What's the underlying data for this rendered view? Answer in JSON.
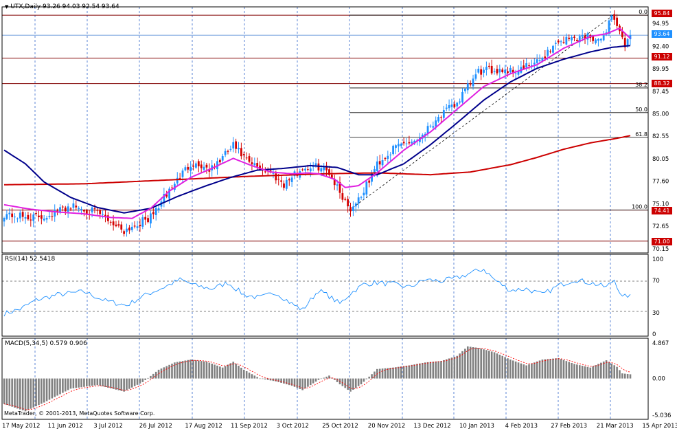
{
  "main_panel": {
    "legend_prefix": "UTX,Daily",
    "ohlc": "93.26 94.03 92.54 93.64",
    "y_ticks": [
      "94.95",
      "92.40",
      "89.95",
      "87.45",
      "85.00",
      "82.55",
      "80.05",
      "77.60",
      "75.10",
      "72.65",
      "70.15"
    ],
    "horizontal_lines": [
      {
        "value": 95.84,
        "label": "95.84"
      },
      {
        "value": 91.12,
        "label": "91.12"
      },
      {
        "value": 88.32,
        "label": "88.32"
      },
      {
        "value": 74.41,
        "label": "74.41"
      },
      {
        "value": 71.0,
        "label": "71.00"
      }
    ],
    "current_price": {
      "value": 93.64,
      "label": "93.64"
    },
    "fibonacci": [
      {
        "value": 95.84,
        "label": "0.0"
      },
      {
        "value": 87.84,
        "label": "38.2"
      },
      {
        "value": 85.13,
        "label": "50.0"
      },
      {
        "value": 82.41,
        "label": "61.8"
      },
      {
        "value": 74.41,
        "label": "100.0"
      }
    ]
  },
  "rsi_panel": {
    "label": "RSI(14) 52.5418",
    "y_ticks": [
      "100",
      "70",
      "30",
      "0"
    ]
  },
  "macd_panel": {
    "label": "MACD(5,34,5) 0.579 0.906",
    "y_ticks": [
      "4.867",
      "0.00",
      "-5.036"
    ]
  },
  "copyright": "MetaTrader, © 2001-2013, MetaQuotes Software Corp.",
  "x_labels": [
    "17 May 2012",
    "11 Jun 2012",
    "3 Jul 2012",
    "26 Jul 2012",
    "17 Aug 2012",
    "11 Sep 2012",
    "3 Oct 2012",
    "25 Oct 2012",
    "20 Nov 2012",
    "13 Dec 2012",
    "10 Jan 2013",
    "4 Feb 2013",
    "27 Feb 2013",
    "21 Mar 2013",
    "15 Apr 2013"
  ],
  "colors": {
    "bull": "#1e90ff",
    "bear": "#d40000",
    "ma_fast": "#e020e0",
    "ma_mid": "#00008b",
    "ma_slow": "#cc0000",
    "rsi": "#1e90ff",
    "macd_bars": "#808080",
    "macd_signal": "#ff0000",
    "grid": "#3366cc",
    "hline": "#800000"
  },
  "chart_data": {
    "type": "candlestick",
    "symbol": "UTX",
    "timeframe": "Daily",
    "ylim": [
      70.15,
      96.8
    ],
    "close_anchors": [
      [
        0,
        74.0
      ],
      [
        8,
        73.6
      ],
      [
        15,
        73.7
      ],
      [
        25,
        74.9
      ],
      [
        35,
        74.1
      ],
      [
        45,
        72.2
      ],
      [
        55,
        73.6
      ],
      [
        62,
        76.6
      ],
      [
        70,
        79.6
      ],
      [
        78,
        78.9
      ],
      [
        86,
        81.5
      ],
      [
        92,
        79.5
      ],
      [
        100,
        78.6
      ],
      [
        105,
        77.3
      ],
      [
        112,
        79.0
      ],
      [
        118,
        79.2
      ],
      [
        122,
        78.6
      ],
      [
        126,
        76.4
      ],
      [
        130,
        74.5
      ],
      [
        135,
        76.5
      ],
      [
        140,
        79.5
      ],
      [
        148,
        81.6
      ],
      [
        155,
        82.2
      ],
      [
        162,
        84.4
      ],
      [
        170,
        86.2
      ],
      [
        178,
        89.6
      ],
      [
        186,
        89.9
      ],
      [
        192,
        89.7
      ],
      [
        200,
        90.6
      ],
      [
        208,
        93.0
      ],
      [
        215,
        93.4
      ],
      [
        220,
        93.6
      ],
      [
        224,
        92.8
      ],
      [
        228,
        95.9
      ],
      [
        231,
        94.2
      ],
      [
        233,
        92.0
      ],
      [
        235,
        93.64
      ]
    ],
    "ma_fast_anchors": [
      [
        0,
        75.0
      ],
      [
        10,
        74.5
      ],
      [
        20,
        74.2
      ],
      [
        30,
        74.0
      ],
      [
        40,
        73.6
      ],
      [
        48,
        73.5
      ],
      [
        55,
        74.6
      ],
      [
        62,
        76.5
      ],
      [
        70,
        78.0
      ],
      [
        78,
        79.0
      ],
      [
        86,
        80.1
      ],
      [
        92,
        79.4
      ],
      [
        100,
        78.6
      ],
      [
        108,
        78.4
      ],
      [
        114,
        78.5
      ],
      [
        118,
        78.4
      ],
      [
        124,
        77.8
      ],
      [
        128,
        76.9
      ],
      [
        133,
        77.1
      ],
      [
        140,
        78.5
      ],
      [
        150,
        81.0
      ],
      [
        160,
        83.0
      ],
      [
        170,
        85.5
      ],
      [
        180,
        88.0
      ],
      [
        190,
        89.4
      ],
      [
        200,
        90.4
      ],
      [
        210,
        92.2
      ],
      [
        220,
        93.5
      ],
      [
        226,
        93.8
      ],
      [
        231,
        94.4
      ],
      [
        235,
        93.3
      ]
    ],
    "ma_mid_anchors": [
      [
        0,
        81.0
      ],
      [
        8,
        79.5
      ],
      [
        15,
        77.5
      ],
      [
        25,
        75.8
      ],
      [
        35,
        74.7
      ],
      [
        45,
        74.1
      ],
      [
        55,
        74.6
      ],
      [
        65,
        75.9
      ],
      [
        75,
        77.0
      ],
      [
        85,
        78.0
      ],
      [
        95,
        78.8
      ],
      [
        105,
        79.0
      ],
      [
        115,
        79.3
      ],
      [
        125,
        79.1
      ],
      [
        133,
        78.3
      ],
      [
        140,
        78.3
      ],
      [
        150,
        79.5
      ],
      [
        160,
        81.6
      ],
      [
        170,
        84.0
      ],
      [
        180,
        86.5
      ],
      [
        190,
        88.5
      ],
      [
        200,
        90.0
      ],
      [
        210,
        91.0
      ],
      [
        220,
        91.8
      ],
      [
        228,
        92.3
      ],
      [
        235,
        92.5
      ]
    ],
    "ma_slow_anchors": [
      [
        0,
        77.2
      ],
      [
        30,
        77.3
      ],
      [
        60,
        77.7
      ],
      [
        90,
        78.1
      ],
      [
        120,
        78.4
      ],
      [
        140,
        78.5
      ],
      [
        160,
        78.3
      ],
      [
        175,
        78.6
      ],
      [
        190,
        79.4
      ],
      [
        200,
        80.2
      ],
      [
        210,
        81.1
      ],
      [
        220,
        81.8
      ],
      [
        230,
        82.3
      ],
      [
        235,
        82.6
      ]
    ],
    "rsi": {
      "ylim": [
        0,
        100
      ],
      "levels": [
        70,
        30
      ],
      "last": 52.5418,
      "anchors": [
        [
          0,
          27
        ],
        [
          6,
          33
        ],
        [
          12,
          45
        ],
        [
          20,
          52
        ],
        [
          30,
          56
        ],
        [
          38,
          44
        ],
        [
          46,
          38
        ],
        [
          52,
          50
        ],
        [
          60,
          62
        ],
        [
          66,
          72
        ],
        [
          72,
          64
        ],
        [
          78,
          60
        ],
        [
          84,
          68
        ],
        [
          90,
          52
        ],
        [
          96,
          48
        ],
        [
          102,
          55
        ],
        [
          108,
          40
        ],
        [
          112,
          32
        ],
        [
          118,
          58
        ],
        [
          122,
          50
        ],
        [
          126,
          40
        ],
        [
          130,
          54
        ],
        [
          135,
          66
        ],
        [
          140,
          68
        ],
        [
          146,
          66
        ],
        [
          152,
          62
        ],
        [
          158,
          72
        ],
        [
          164,
          70
        ],
        [
          170,
          74
        ],
        [
          176,
          82
        ],
        [
          180,
          86
        ],
        [
          184,
          72
        ],
        [
          190,
          58
        ],
        [
          196,
          60
        ],
        [
          202,
          52
        ],
        [
          208,
          64
        ],
        [
          214,
          72
        ],
        [
          220,
          68
        ],
        [
          226,
          62
        ],
        [
          229,
          72
        ],
        [
          232,
          48
        ],
        [
          235,
          52.5
        ]
      ]
    },
    "macd": {
      "ylim": [
        -5.036,
        4.867
      ],
      "last_macd": 0.579,
      "last_signal": 0.906,
      "anchors": [
        [
          0,
          -3.5
        ],
        [
          8,
          -4.5
        ],
        [
          15,
          -3.3
        ],
        [
          25,
          -1.4
        ],
        [
          35,
          -0.9
        ],
        [
          45,
          -1.8
        ],
        [
          52,
          -0.5
        ],
        [
          58,
          1.2
        ],
        [
          64,
          2.2
        ],
        [
          70,
          2.6
        ],
        [
          76,
          2.3
        ],
        [
          82,
          1.5
        ],
        [
          86,
          2.3
        ],
        [
          90,
          1.2
        ],
        [
          96,
          0.0
        ],
        [
          102,
          -0.4
        ],
        [
          108,
          -1.0
        ],
        [
          112,
          -1.6
        ],
        [
          118,
          -0.2
        ],
        [
          122,
          0.4
        ],
        [
          126,
          -0.8
        ],
        [
          130,
          -1.8
        ],
        [
          134,
          -0.8
        ],
        [
          140,
          1.3
        ],
        [
          146,
          1.5
        ],
        [
          152,
          1.8
        ],
        [
          158,
          2.2
        ],
        [
          164,
          2.4
        ],
        [
          170,
          3.1
        ],
        [
          174,
          4.4
        ],
        [
          178,
          4.2
        ],
        [
          184,
          3.6
        ],
        [
          190,
          2.6
        ],
        [
          196,
          1.8
        ],
        [
          202,
          2.6
        ],
        [
          208,
          2.8
        ],
        [
          214,
          2.0
        ],
        [
          220,
          1.5
        ],
        [
          226,
          2.5
        ],
        [
          230,
          1.6
        ],
        [
          232,
          0.7
        ],
        [
          235,
          0.579
        ]
      ]
    },
    "series_count": 236
  }
}
